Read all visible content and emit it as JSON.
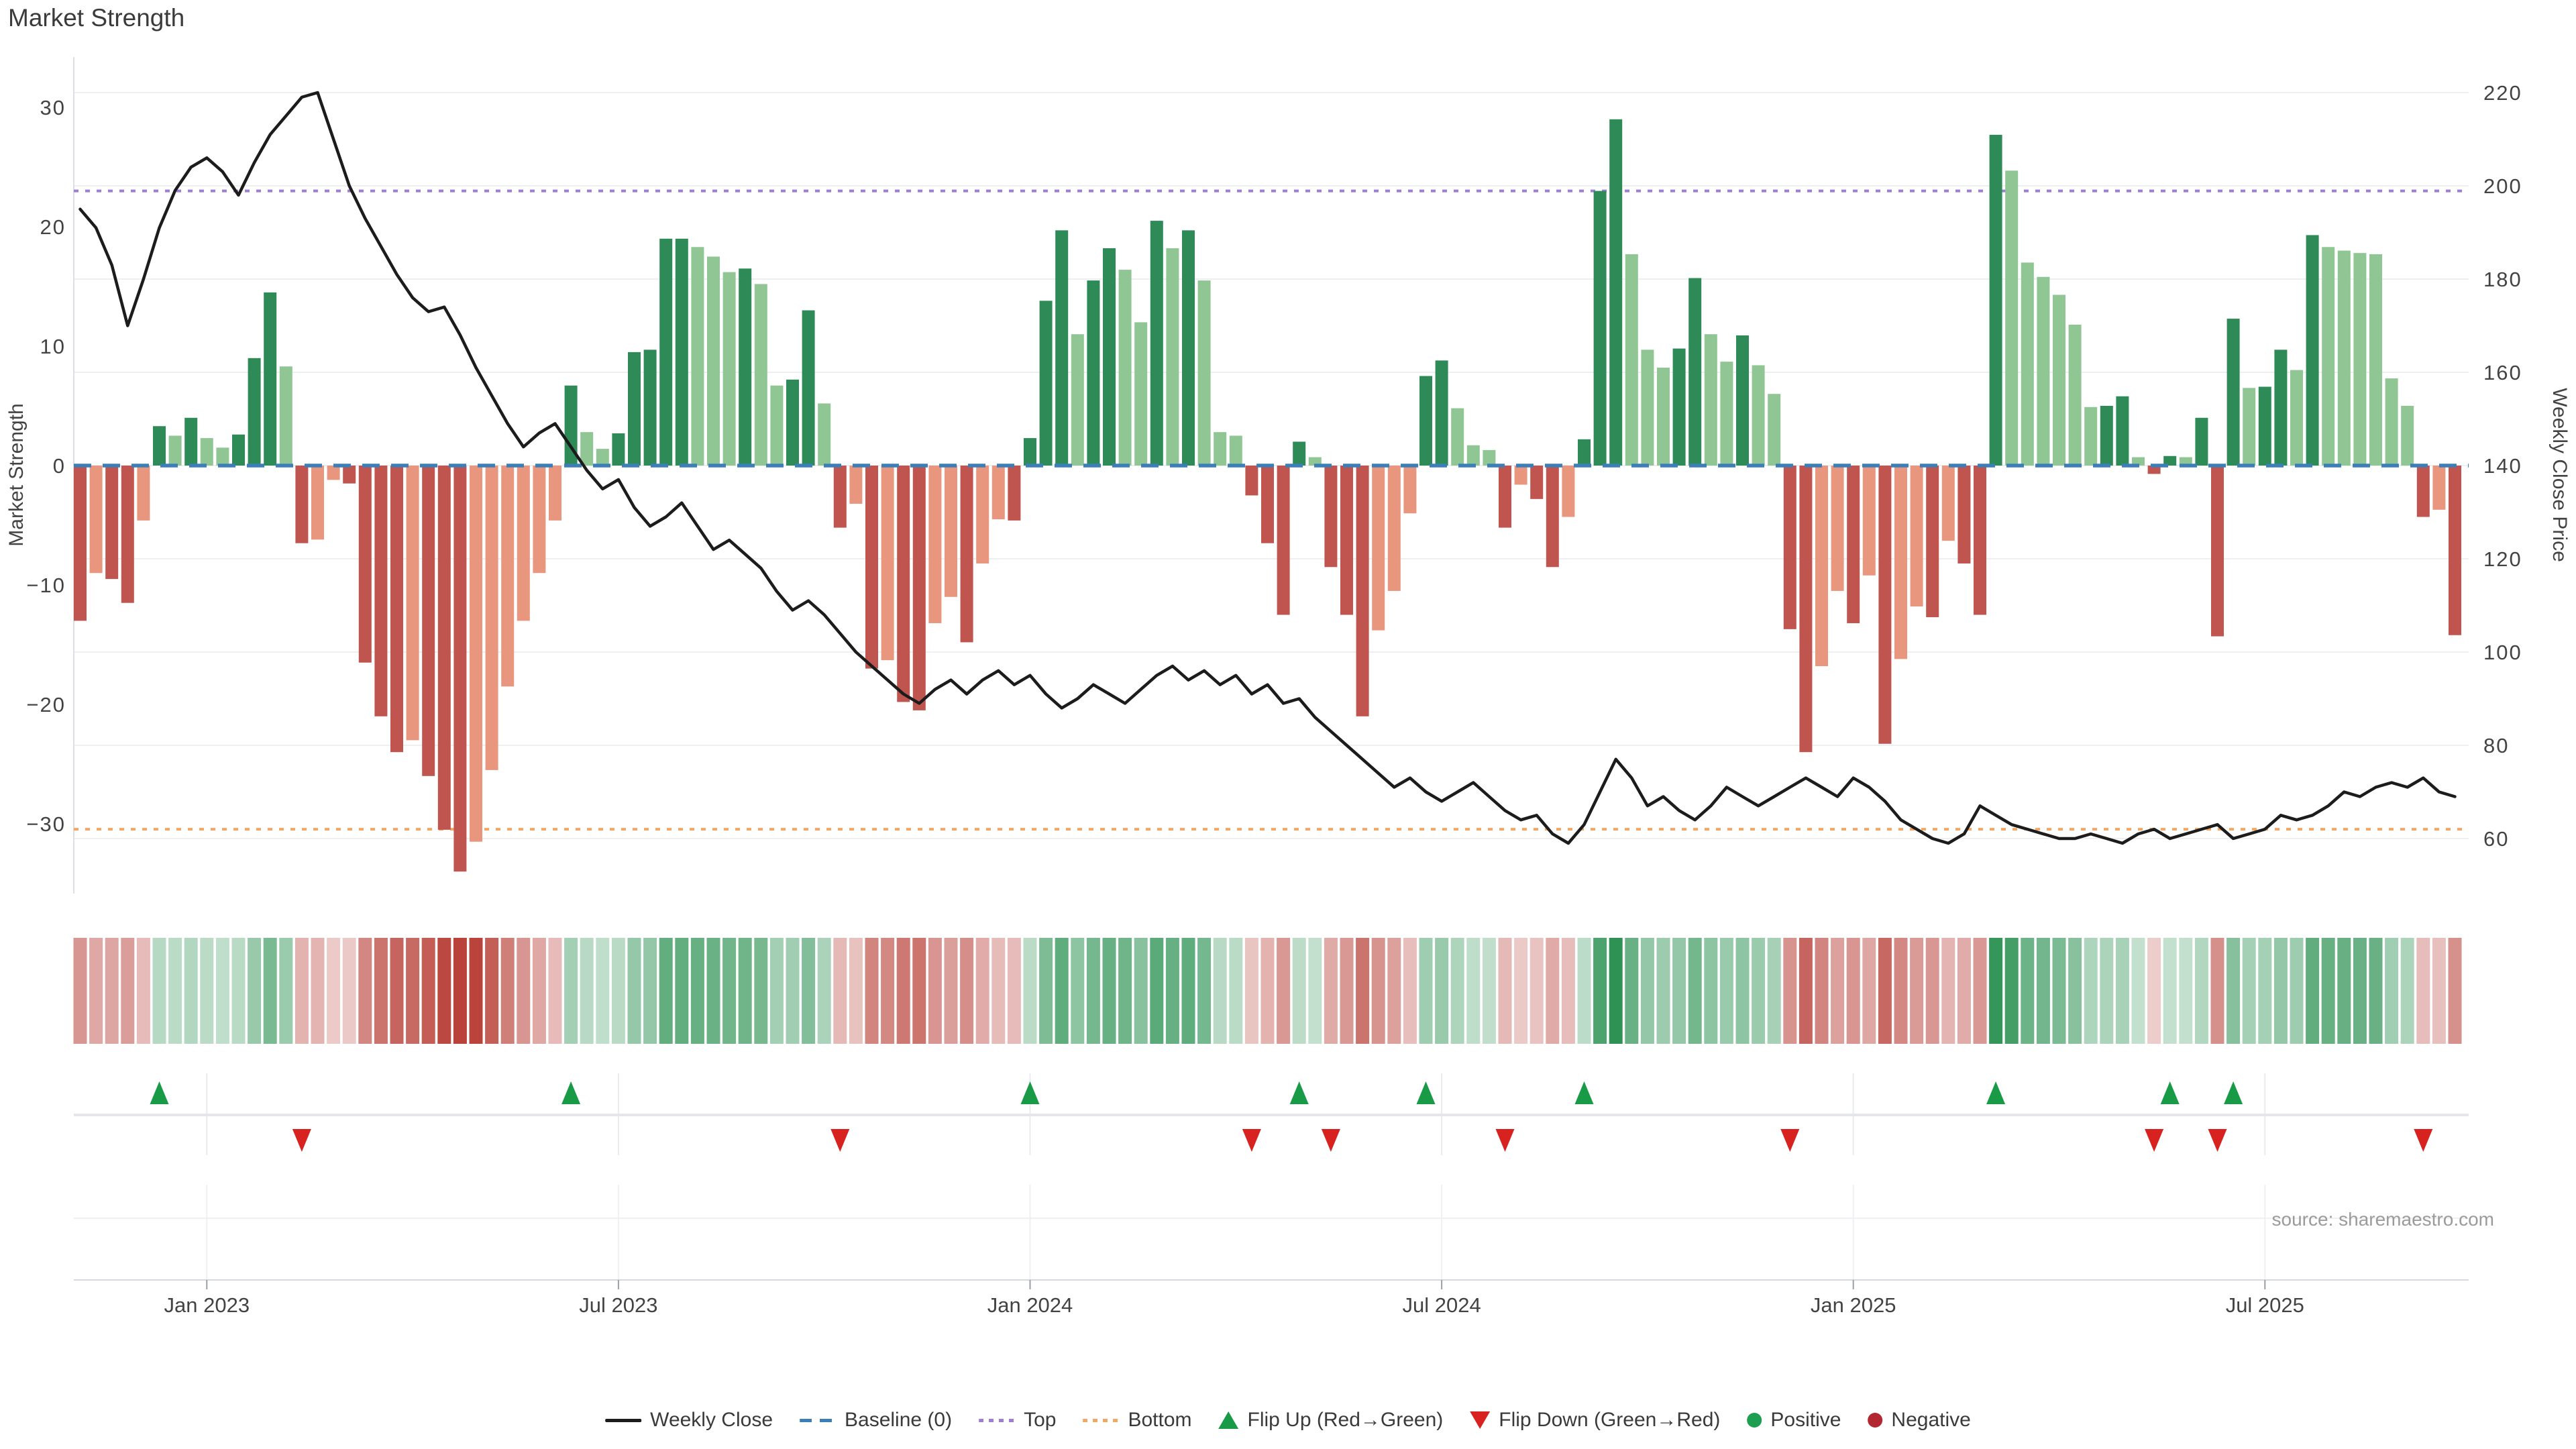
{
  "header": {
    "title": "Market Strength"
  },
  "annotations": {
    "source": "source: sharemaestro.com"
  },
  "axes": {
    "left": {
      "label": "Market Strength",
      "ticks": [
        30,
        20,
        10,
        0,
        -10,
        -20,
        -30
      ]
    },
    "right": {
      "label": "Weekly Close Price",
      "ticks": [
        220,
        200,
        180,
        160,
        140,
        120,
        100,
        80,
        60
      ]
    },
    "x": {
      "ticks": [
        {
          "week": 8,
          "label": "Jan 2023"
        },
        {
          "week": 34,
          "label": "Jul 2023"
        },
        {
          "week": 60,
          "label": "Jan 2024"
        },
        {
          "week": 86,
          "label": "Jul 2024"
        },
        {
          "week": 112,
          "label": "Jan 2025"
        },
        {
          "week": 138,
          "label": "Jul 2025"
        }
      ]
    }
  },
  "colors": {
    "pos_dark": "#2e8b57",
    "pos_light": "#8fc693",
    "neg_dark": "#c0544e",
    "neg_light": "#e9967e",
    "baseline": "#3c7fb8",
    "top_line": "#9e7dd6",
    "bottom_line": "#f4a765",
    "price_line": "#1c1c1c",
    "flip_up": "#189a47",
    "flip_down": "#d7221f",
    "positive_dot": "#1e9e50",
    "negative_dot": "#b22730",
    "heat_pos": "#1e8a47",
    "heat_neg": "#b9423a",
    "grid": "#edf0f3",
    "axis_line": "#d5d8dc",
    "spine": "#dcdfe3",
    "tick_text": "#434343",
    "muted_text": "#9b9b9b",
    "divider": "#e4e6ea"
  },
  "legend": {
    "items": [
      {
        "label": "Weekly Close",
        "type": "line",
        "color": "#1c1c1c"
      },
      {
        "label": "Baseline (0)",
        "type": "dash",
        "color": "#3c7fb8"
      },
      {
        "label": "Top",
        "type": "dot",
        "color": "#9e7dd6"
      },
      {
        "label": "Bottom",
        "type": "dot",
        "color": "#f4a765"
      },
      {
        "label": "Flip Up (Red→Green)",
        "type": "tri-up",
        "color": "#189a47"
      },
      {
        "label": "Flip Down (Green→Red)",
        "type": "tri-down",
        "color": "#d7221f"
      },
      {
        "label": "Positive",
        "type": "circle",
        "color": "#1e9e50"
      },
      {
        "label": "Negative",
        "type": "circle",
        "color": "#b22730"
      }
    ]
  },
  "chart_data": {
    "type": "bar",
    "title": "Market Strength",
    "x_unit": "weekly",
    "ylabel_left": "Market Strength",
    "ylabel_right": "Weekly Close Price",
    "ylim_left": [
      -35,
      34.2
    ],
    "ylim_right": [
      48,
      227
    ],
    "grid": true,
    "legend_position": "bottom-center",
    "baseline_value": 0,
    "top_threshold": 23,
    "bottom_threshold_price": 62,
    "flip_up_weeks": [
      5,
      31,
      60,
      77,
      85,
      95,
      121,
      132,
      136
    ],
    "flip_down_weeks": [
      14,
      48,
      74,
      79,
      90,
      108,
      131,
      135,
      148
    ],
    "series": [
      {
        "name": "Market Strength (weekly bars)",
        "values": [
          -13,
          -9,
          -9.5,
          -11.5,
          -4.6,
          3.3,
          2.5,
          4,
          2.3,
          1.5,
          2.6,
          9,
          14.5,
          8.3,
          -6.5,
          -6.2,
          -1.2,
          -1.5,
          -16.5,
          -21,
          -24,
          -23,
          -26,
          -30.5,
          -34,
          -31.5,
          -25.5,
          -18.5,
          -13,
          -9,
          -4.6,
          6.7,
          2.8,
          1.4,
          2.7,
          9.5,
          9.7,
          19,
          19,
          18.3,
          17.5,
          16.2,
          16.5,
          15.2,
          6.7,
          7.2,
          13,
          5.2,
          -5.2,
          -3.2,
          -17,
          -16.3,
          -19.8,
          -20.5,
          -13.2,
          -11,
          -14.8,
          -8.2,
          -4.5,
          -4.6,
          2.3,
          13.8,
          19.7,
          11,
          15.5,
          18.2,
          16.4,
          12,
          20.5,
          18.2,
          19.7,
          15.5,
          2.8,
          2.5,
          -2.5,
          -6.5,
          -12.5,
          2,
          0.7,
          -8.5,
          -12.5,
          -21,
          -13.8,
          -10.5,
          -4,
          7.5,
          8.8,
          4.8,
          1.7,
          1.3,
          -5.2,
          -1.6,
          -2.8,
          -8.5,
          -4.3,
          2.2,
          23,
          29,
          17.7,
          9.7,
          8.2,
          9.8,
          15.7,
          11,
          8.7,
          10.9,
          8.4,
          6,
          -13.7,
          -24,
          -16.8,
          -10.5,
          -13.2,
          -9.2,
          -23.3,
          -16.2,
          -11.8,
          -12.7,
          -6.3,
          -8.2,
          -12.5,
          27.7,
          24.7,
          17,
          15.8,
          14.3,
          11.8,
          4.9,
          5,
          5.8,
          0.7,
          -0.7,
          0.8,
          0.7,
          4,
          -14.3,
          12.3,
          6.5,
          6.6,
          9.7,
          8,
          19.3,
          18.3,
          18,
          17.8,
          17.7,
          7.3,
          5,
          -4.3,
          -3.7,
          -14.2
        ]
      },
      {
        "name": "Weekly Close",
        "values": [
          195,
          191,
          183,
          170,
          180,
          191,
          199,
          204,
          206,
          203,
          198,
          205,
          211,
          215,
          219,
          220,
          210,
          200,
          193,
          187,
          181,
          176,
          173,
          174,
          168,
          161,
          155,
          149,
          144,
          147,
          149,
          144,
          139,
          135,
          137,
          131,
          127,
          129,
          132,
          127,
          122,
          124,
          121,
          118,
          113,
          109,
          111,
          108,
          104,
          100,
          97,
          94,
          91,
          89,
          92,
          94,
          91,
          94,
          96,
          93,
          95,
          91,
          88,
          90,
          93,
          91,
          89,
          92,
          95,
          97,
          94,
          96,
          93,
          95,
          91,
          93,
          89,
          90,
          86,
          83,
          80,
          77,
          74,
          71,
          73,
          70,
          68,
          70,
          72,
          69,
          66,
          64,
          65,
          61,
          59,
          63,
          70,
          77,
          73,
          67,
          69,
          66,
          64,
          67,
          71,
          69,
          67,
          69,
          71,
          73,
          71,
          69,
          73,
          71,
          68,
          64,
          62,
          60,
          59,
          61,
          67,
          65,
          63,
          62,
          61,
          60,
          60,
          61,
          60,
          59,
          61,
          62,
          60,
          61,
          62,
          63,
          60,
          61,
          62,
          65,
          64,
          65,
          67,
          70,
          69,
          71,
          72,
          71,
          73,
          70,
          69
        ]
      }
    ]
  }
}
